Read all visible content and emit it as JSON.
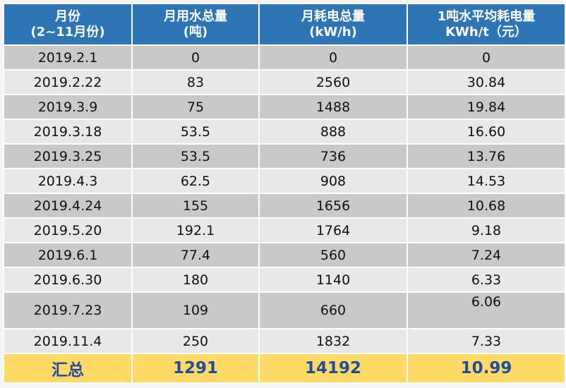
{
  "headers": [
    {
      "line1": "月份",
      "line2": "(2~11月份)"
    },
    {
      "line1": "月用水总量",
      "line2": "(吨)"
    },
    {
      "line1": "月耗电总量",
      "line2": "(kW/h)"
    },
    {
      "line1": "1吨水平均耗电量",
      "line2": "KWh/t（元）"
    }
  ],
  "rows": [
    [
      "2019.2.1",
      "0",
      "0",
      "0"
    ],
    [
      "2019.2.22",
      "83",
      "2560",
      "30.84"
    ],
    [
      "2019.3.9",
      "75",
      "1488",
      "19.84"
    ],
    [
      "2019.3.18",
      "53.5",
      "888",
      "16.60"
    ],
    [
      "2019.3.25",
      "53.5",
      "736",
      "13.76"
    ],
    [
      "2019.4.3",
      "62.5",
      "908",
      "14.53"
    ],
    [
      "2019.4.24",
      "155",
      "1656",
      "10.68"
    ],
    [
      "2019.5.20",
      "192.1",
      "1764",
      "9.18"
    ],
    [
      "2019.6.1",
      "77.4",
      "560",
      "7.24"
    ],
    [
      "2019.6.30",
      "180",
      "1140",
      "6.33"
    ],
    [
      "2019.7.23",
      "109",
      "660",
      "6.06"
    ],
    [
      "2019.11.4",
      "250",
      "1832",
      "7.33"
    ]
  ],
  "total": [
    "汇总",
    "1291",
    "14192",
    "10.99"
  ],
  "colors": {
    "header": "#2e75b6",
    "row_dark": "#c9c9c9",
    "row_light": "#e8e8e8",
    "total_bg": "#ffd966",
    "total_text": "#1f4e9c"
  }
}
